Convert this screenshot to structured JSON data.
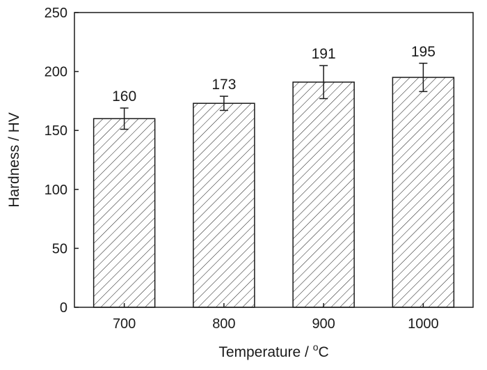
{
  "chart_data": {
    "type": "bar",
    "categories": [
      "700",
      "800",
      "900",
      "1000"
    ],
    "values": [
      160,
      173,
      191,
      195
    ],
    "errors": [
      9,
      6,
      14,
      12
    ],
    "data_labels": [
      "160",
      "173",
      "191",
      "195"
    ],
    "xlabel": "Temperature / ",
    "xlabel_unit_sup": "o",
    "xlabel_unit": "C",
    "ylabel": "Hardness / HV",
    "ylim": [
      0,
      250
    ],
    "yticks": [
      0,
      50,
      100,
      150,
      200,
      250
    ],
    "ytick_labels": [
      "0",
      "50",
      "100",
      "150",
      "200",
      "250"
    ],
    "bar_fill": "hatched",
    "bar_stroke": "#1a1a1a",
    "grid": false
  }
}
